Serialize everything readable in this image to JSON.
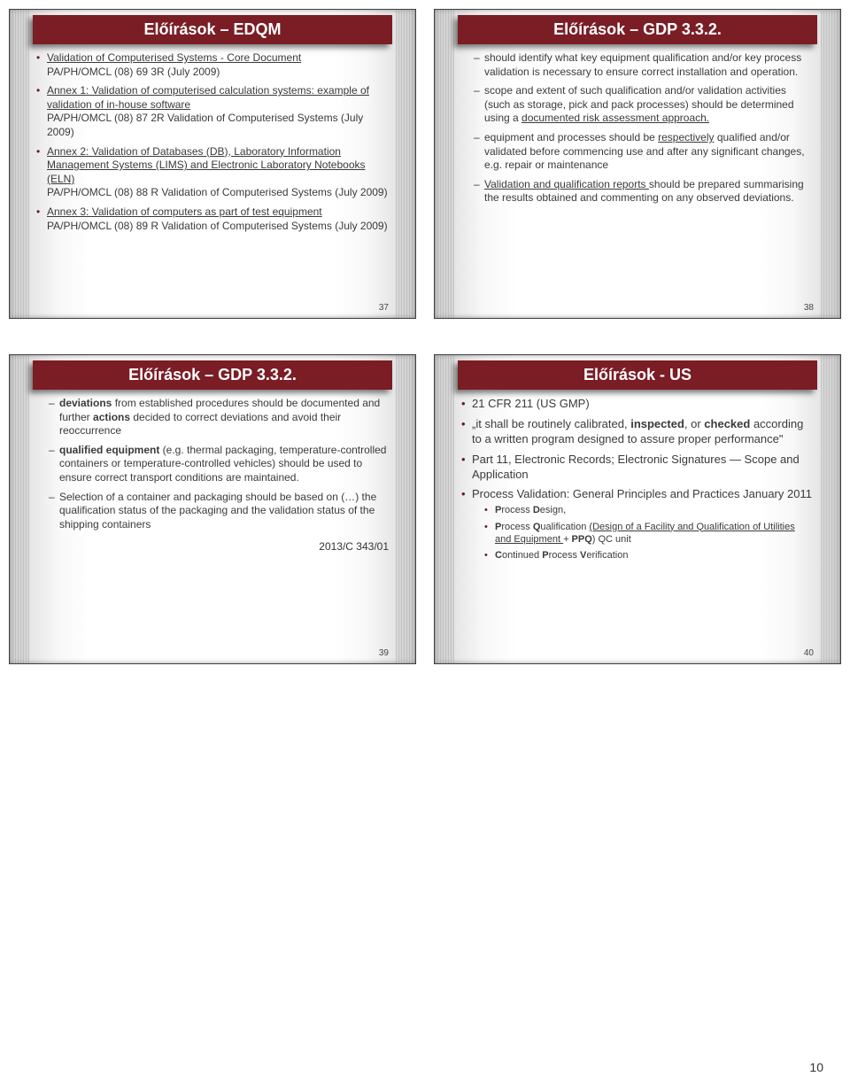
{
  "theme": {
    "title_bg": "#7a1d25",
    "title_color": "#ffffff",
    "body_color": "#3a3a3a",
    "bullet_color": "#6a1a20",
    "slide_border": "#404040"
  },
  "footer_page": "10",
  "slides": [
    {
      "num": "37",
      "title": "Előírások – EDQM",
      "b1_link": "Validation of Computerised Systems - Core Document",
      "b1_rest": "PA/PH/OMCL (08) 69 3R (July 2009)",
      "b2_link": "Annex 1: Validation of computerised calculation systems: example of validation of in-house software",
      "b2_rest": "PA/PH/OMCL (08) 87 2R Validation of Computerised Systems (July 2009)",
      "b3_link": "Annex 2: Validation of Databases (DB), Laboratory Information Management Systems (LIMS) and Electronic Laboratory Notebooks (ELN)",
      "b3_rest": "PA/PH/OMCL (08) 88 R Validation of Computerised Systems (July 2009)",
      "b4_link": "Annex 3: Validation of computers as part of test equipment",
      "b4_rest": "PA/PH/OMCL (08) 89 R Validation of Computerised Systems (July 2009)"
    },
    {
      "num": "38",
      "title": "Előírások – GDP 3.3.2.",
      "d1": "should identify what key equipment qualification and/or key process validation is necessary to ensure correct installation and operation.",
      "d2a": "scope and extent of such qualification and/or validation activities (such as storage, pick and pack processes) should be determined using a ",
      "d2b": "documented risk assessment approach.",
      "d3a": "equipment and processes should be ",
      "d3b": "respectively",
      "d3c": " qualified and/or validated before commencing use and after any significant changes, e.g. repair or maintenance",
      "d4a": "Validation and qualification reports ",
      "d4b": "should be prepared summarising the results obtained and commenting on any observed deviations."
    },
    {
      "num": "39",
      "title": "Előírások – GDP 3.3.2.",
      "ref": "2013/C 343/01",
      "d1a": "deviations",
      "d1b": " from established procedures should be documented and further ",
      "d1c": "actions",
      "d1d": " decided to correct deviations and avoid their reoccurrence",
      "d2a": "qualified equipment",
      "d2b": " (e.g. thermal packaging, temperature-controlled containers or temperature-controlled vehicles) should be used to ensure correct transport conditions are maintained.",
      "d3": "Selection of a container and packaging should be based on (…) the qualification status of the packaging and the validation status of the shipping containers"
    },
    {
      "num": "40",
      "title": "Előírások - US",
      "b1": "21 CFR 211 (US GMP)",
      "b2a": "„it shall be routinely calibrated, ",
      "b2b": "inspected",
      "b2c": ", or ",
      "b2d": "checked",
      "b2e": " according to a written program designed to assure proper performance\"",
      "b3": "Part 11, Electronic Records; Electronic Signatures — Scope and Application",
      "b4": "Process Validation: General Principles and Practices January 2011",
      "s1a": "P",
      "s1b": "rocess ",
      "s1c": "D",
      "s1d": "esign,",
      "s2a": "P",
      "s2b": "rocess ",
      "s2c": "Q",
      "s2d": "ualification ",
      "s2e": "(Design of a Facility and Qualification of Utilities and Equipment ",
      "s2f": "+ ",
      "s2g": "PPQ",
      "s2h": ") QC unit",
      "s3a": "C",
      "s3b": "ontinued ",
      "s3c": "P",
      "s3d": "rocess ",
      "s3e": "V",
      "s3f": "erification"
    }
  ]
}
